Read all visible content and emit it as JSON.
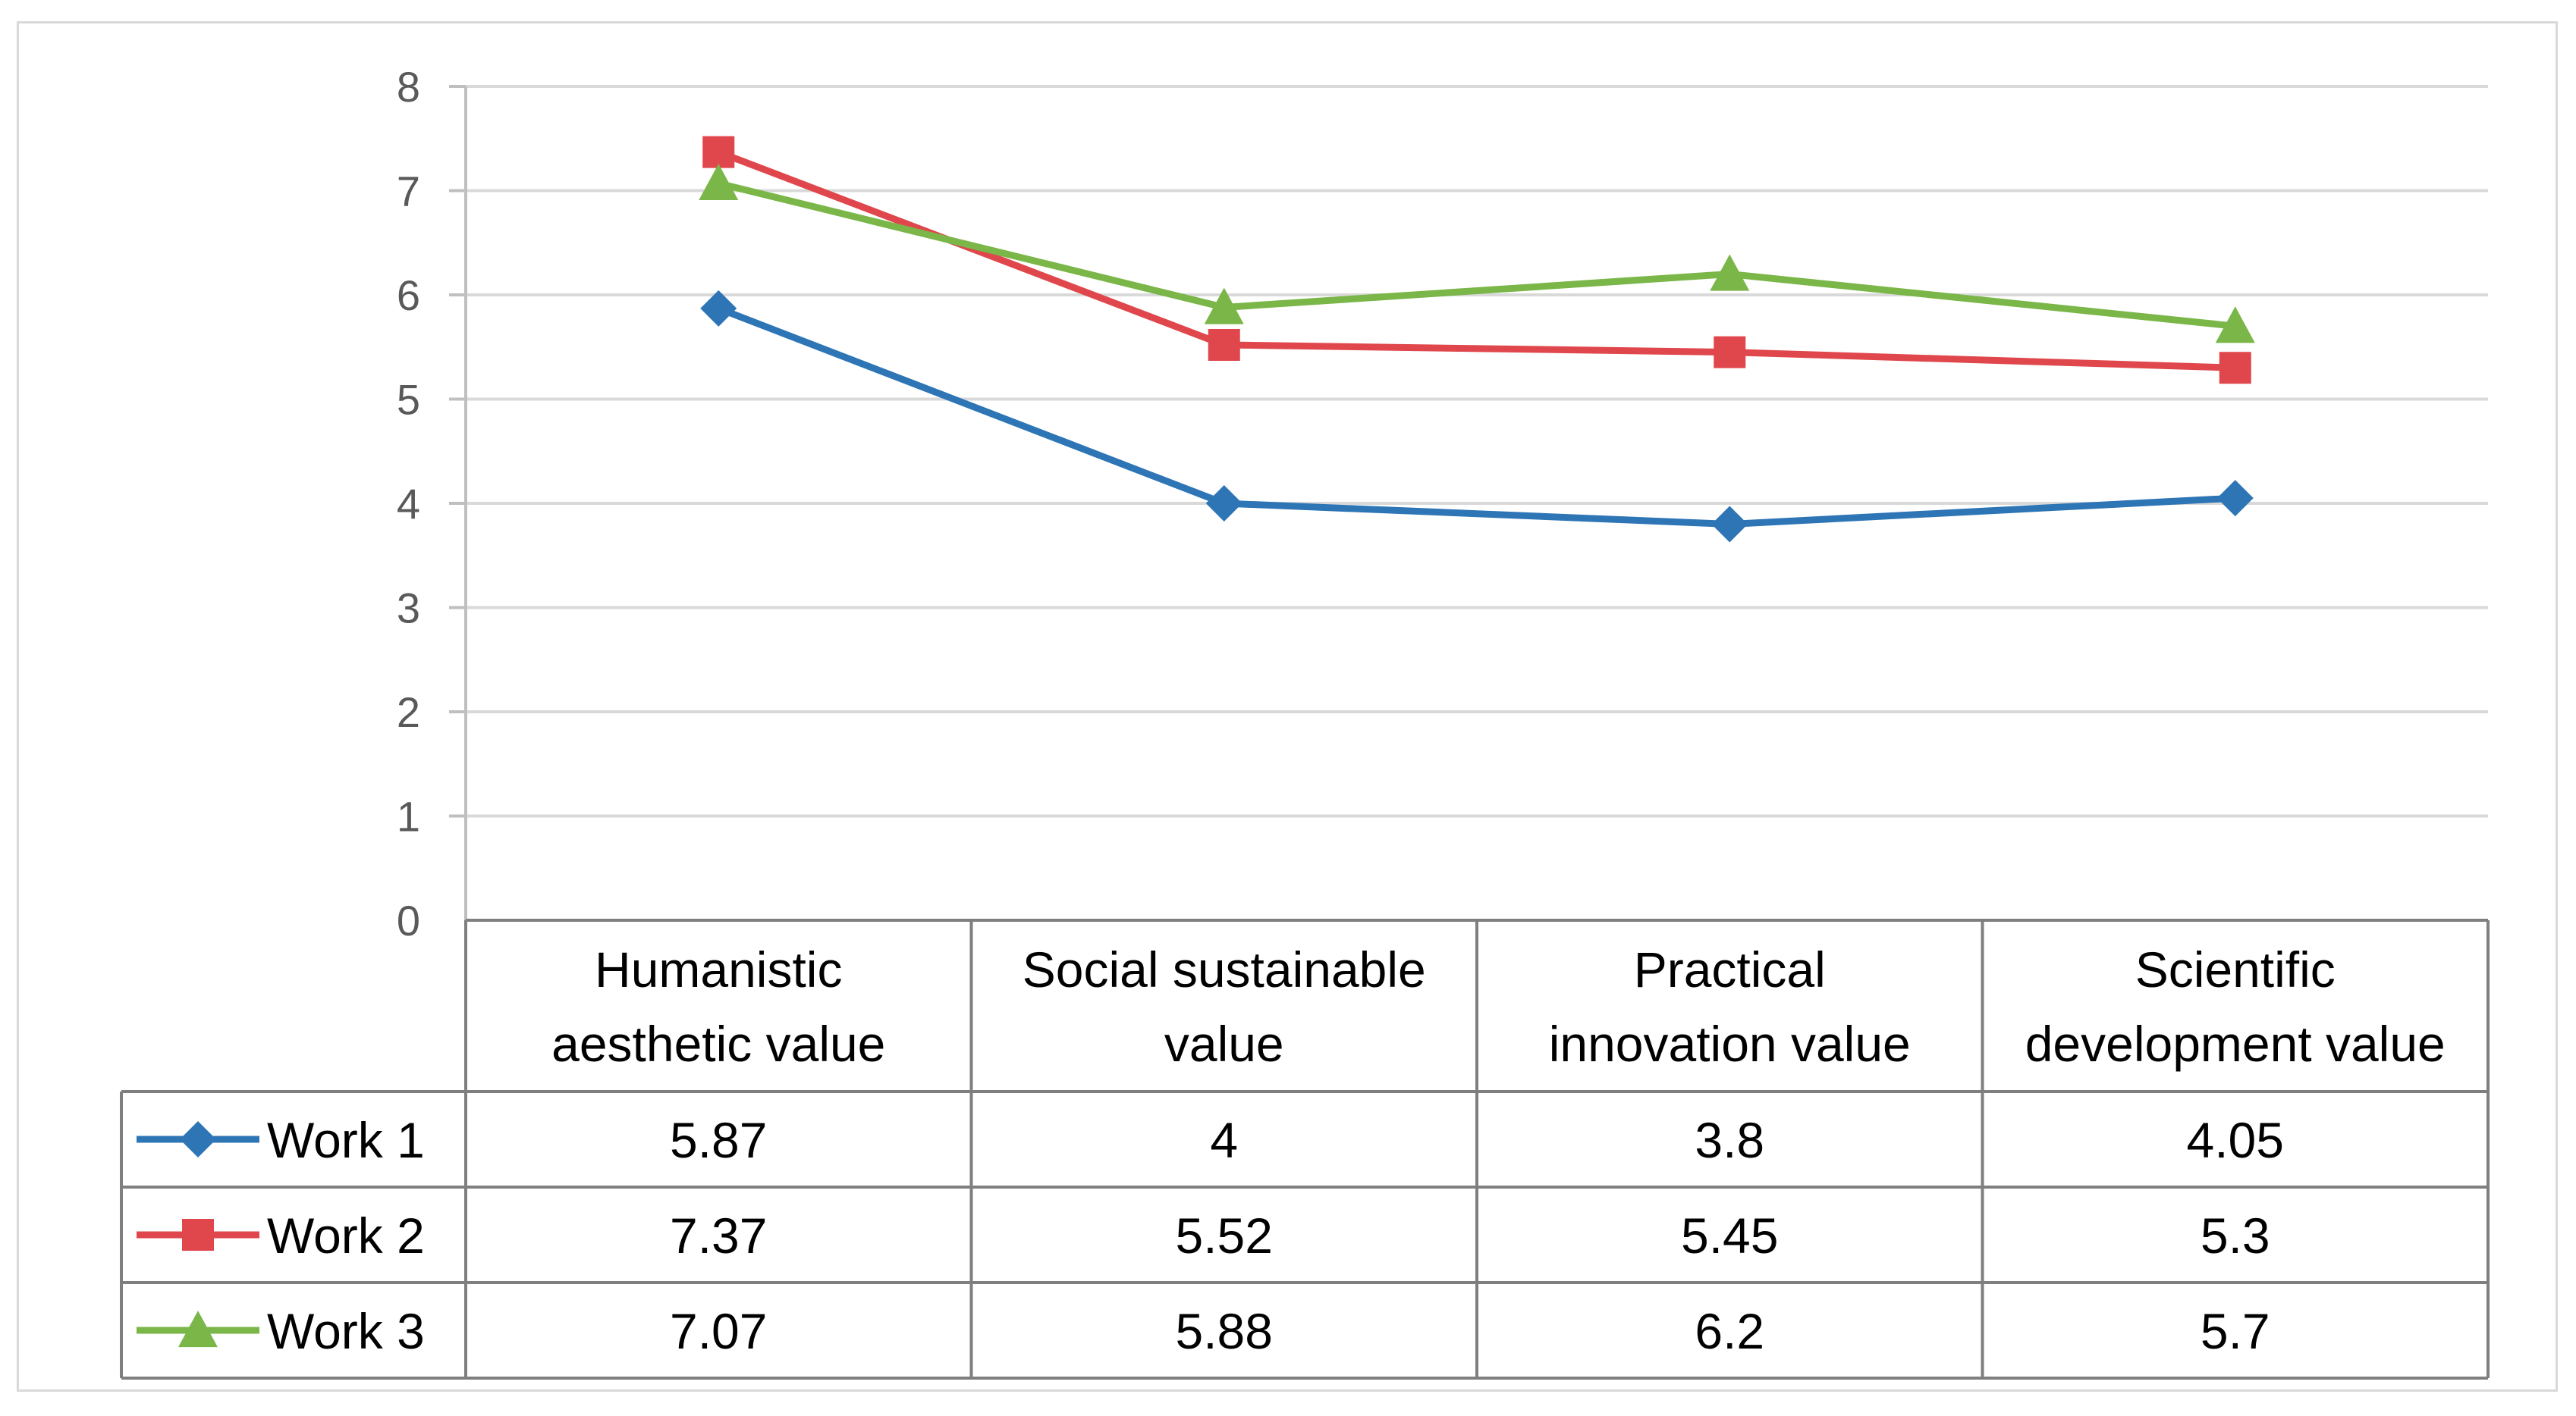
{
  "chart_data": {
    "type": "line",
    "title": "",
    "xlabel": "",
    "ylabel": "",
    "ylim": [
      0,
      8
    ],
    "yticks": [
      0,
      1,
      2,
      3,
      4,
      5,
      6,
      7,
      8
    ],
    "grid": true,
    "legend_placement": "bottom data table",
    "categories": [
      [
        "Humanistic",
        "aesthetic value"
      ],
      [
        "Social sustainable",
        "value"
      ],
      [
        "Practical",
        "innovation value"
      ],
      [
        "Scientific",
        "development value"
      ]
    ],
    "series": [
      {
        "name": "Work 1",
        "marker": "diamond",
        "color": "#2e75b6",
        "values": [
          5.87,
          4,
          3.8,
          4.05
        ],
        "labels": [
          "5.87",
          "4",
          "3.8",
          "4.05"
        ]
      },
      {
        "name": "Work 2",
        "marker": "square",
        "color": "#e0474c",
        "values": [
          7.37,
          5.52,
          5.45,
          5.3
        ],
        "labels": [
          "7.37",
          "5.52",
          "5.45",
          "5.3"
        ]
      },
      {
        "name": "Work 3",
        "marker": "triangle",
        "color": "#7ab648",
        "values": [
          7.07,
          5.88,
          6.2,
          5.7
        ],
        "labels": [
          "7.07",
          "5.88",
          "6.2",
          "5.7"
        ]
      }
    ]
  }
}
